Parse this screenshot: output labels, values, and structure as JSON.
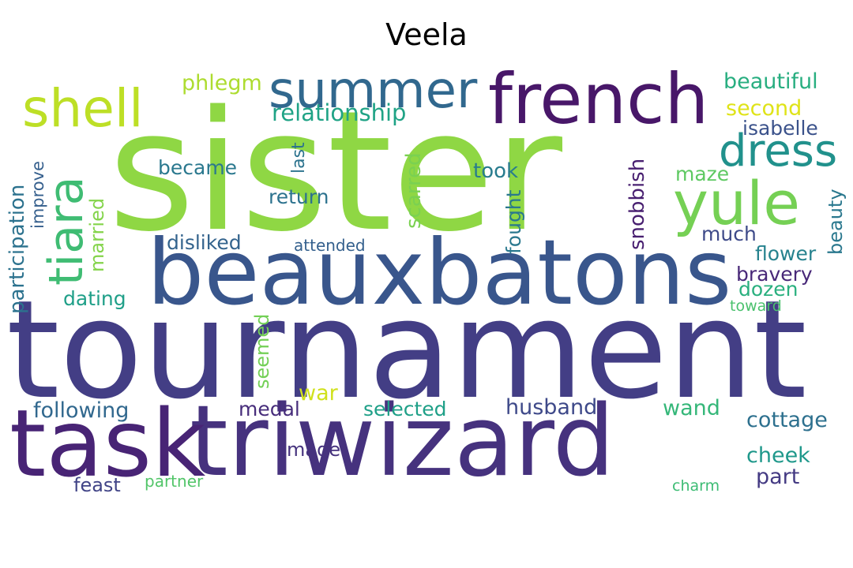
{
  "title": "Veela",
  "words": [
    {
      "text": "sister",
      "color": "#8fd744"
    },
    {
      "text": "tournament",
      "color": "#433e85"
    },
    {
      "text": "triwizard",
      "color": "#46327e"
    },
    {
      "text": "beauxbatons",
      "color": "#39568c"
    },
    {
      "text": "task",
      "color": "#482475"
    },
    {
      "text": "french",
      "color": "#481769"
    },
    {
      "text": "summer",
      "color": "#31688e"
    },
    {
      "text": "shell",
      "color": "#bddf26"
    },
    {
      "text": "yule",
      "color": "#75d054"
    },
    {
      "text": "dress",
      "color": "#21918c"
    },
    {
      "text": "tiara",
      "color": "#3fbc73"
    },
    {
      "text": "relationship",
      "color": "#20a386"
    },
    {
      "text": "phlegm",
      "color": "#addc30"
    },
    {
      "text": "beautiful",
      "color": "#28ae80"
    },
    {
      "text": "second",
      "color": "#dfe318"
    },
    {
      "text": "isabelle",
      "color": "#3b528b"
    },
    {
      "text": "participation",
      "color": "#2c728e"
    },
    {
      "text": "improve",
      "color": "#355f8d"
    },
    {
      "text": "married",
      "color": "#84d44b"
    },
    {
      "text": "became",
      "color": "#2a788e"
    },
    {
      "text": "last",
      "color": "#2c738e"
    },
    {
      "text": "return",
      "color": "#2c728e"
    },
    {
      "text": "scarred",
      "color": "#7ad151"
    },
    {
      "text": "took",
      "color": "#287c8e"
    },
    {
      "text": "fought",
      "color": "#2a788e"
    },
    {
      "text": "snobbish",
      "color": "#481f70"
    },
    {
      "text": "maze",
      "color": "#5ec962"
    },
    {
      "text": "beauty",
      "color": "#2a788e"
    },
    {
      "text": "disliked",
      "color": "#33638d"
    },
    {
      "text": "attended",
      "color": "#34608d"
    },
    {
      "text": "much",
      "color": "#3e4a89"
    },
    {
      "text": "flower",
      "color": "#26828e"
    },
    {
      "text": "bravery",
      "color": "#482878"
    },
    {
      "text": "dating",
      "color": "#1f9f88"
    },
    {
      "text": "dozen",
      "color": "#2ab07f"
    },
    {
      "text": "toward",
      "color": "#4ac16d"
    },
    {
      "text": "seemed",
      "color": "#73d056"
    },
    {
      "text": "war",
      "color": "#d0e11c"
    },
    {
      "text": "following",
      "color": "#31688e"
    },
    {
      "text": "medal",
      "color": "#472d7b"
    },
    {
      "text": "selected",
      "color": "#1fa088"
    },
    {
      "text": "husband",
      "color": "#3e4989"
    },
    {
      "text": "wand",
      "color": "#35b779"
    },
    {
      "text": "cottage",
      "color": "#2d708e"
    },
    {
      "text": "made",
      "color": "#46337e"
    },
    {
      "text": "cheek",
      "color": "#1f988b"
    },
    {
      "text": "part",
      "color": "#443a83"
    },
    {
      "text": "feast",
      "color": "#414487"
    },
    {
      "text": "partner",
      "color": "#52c569"
    },
    {
      "text": "charm",
      "color": "#3dbc74"
    }
  ]
}
